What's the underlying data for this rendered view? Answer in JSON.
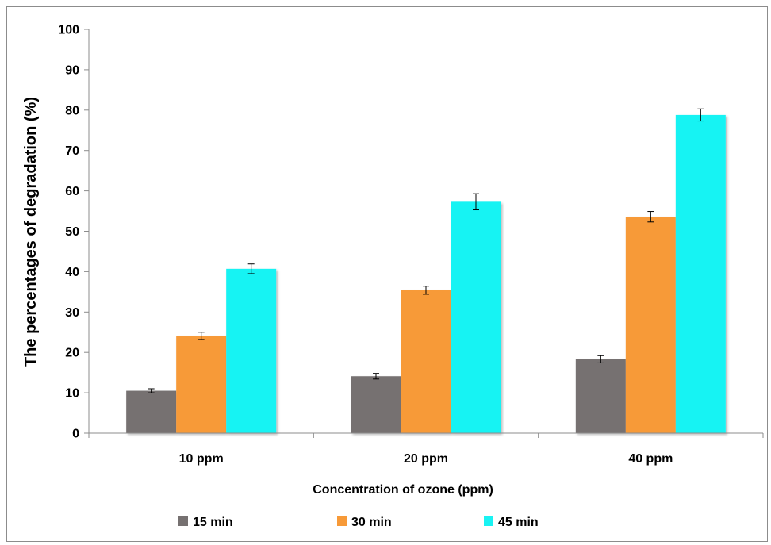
{
  "chart_data": {
    "type": "bar",
    "categories": [
      "10 ppm",
      "20 ppm",
      "40 ppm"
    ],
    "series": [
      {
        "name": "15 min",
        "color": "#767171",
        "values": [
          10.5,
          14.1,
          18.3
        ],
        "errors": [
          0.5,
          0.7,
          0.9
        ]
      },
      {
        "name": "30 min",
        "color": "#F79A38",
        "values": [
          24.1,
          35.4,
          53.6
        ],
        "errors": [
          0.9,
          1.0,
          1.3
        ]
      },
      {
        "name": "45 min",
        "color": "#19F3F3",
        "values": [
          40.7,
          57.3,
          78.8
        ],
        "errors": [
          1.2,
          2.0,
          1.5
        ]
      }
    ],
    "xlabel": "Concentration of ozone (ppm)",
    "ylabel": "The percentages of degradation (%)",
    "ylim": [
      0,
      100
    ],
    "yticks": [
      "0",
      "10",
      "20",
      "30",
      "40",
      "50",
      "60",
      "70",
      "80",
      "90",
      "100"
    ],
    "grid": false,
    "legend_position": "bottom"
  }
}
